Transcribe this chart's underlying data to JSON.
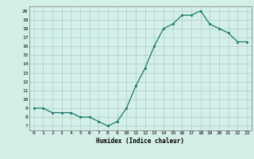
{
  "x": [
    0,
    1,
    2,
    3,
    4,
    5,
    6,
    7,
    8,
    9,
    10,
    11,
    12,
    13,
    14,
    15,
    16,
    17,
    18,
    19,
    20,
    21,
    22,
    23
  ],
  "y": [
    9,
    9,
    8.5,
    8.5,
    8.5,
    8,
    8,
    7.5,
    7,
    7.5,
    9,
    11.5,
    13.5,
    16,
    18,
    18.5,
    19.5,
    19.5,
    20,
    18.5,
    18,
    17.5,
    16.5,
    16.5
  ],
  "line_color": "#1a7a6e",
  "marker_color": "#1a7a6e",
  "bg_color": "#d4eee8",
  "grid_color": "#aacfc8",
  "xlabel": "Humidex (Indice chaleur)",
  "xlim": [
    -0.5,
    23.5
  ],
  "ylim": [
    6.5,
    20.5
  ],
  "yticks": [
    7,
    8,
    9,
    10,
    11,
    12,
    13,
    14,
    15,
    16,
    17,
    18,
    19,
    20
  ],
  "xticks": [
    0,
    1,
    2,
    3,
    4,
    5,
    6,
    7,
    8,
    9,
    10,
    11,
    12,
    13,
    14,
    15,
    16,
    17,
    18,
    19,
    20,
    21,
    22,
    23
  ]
}
